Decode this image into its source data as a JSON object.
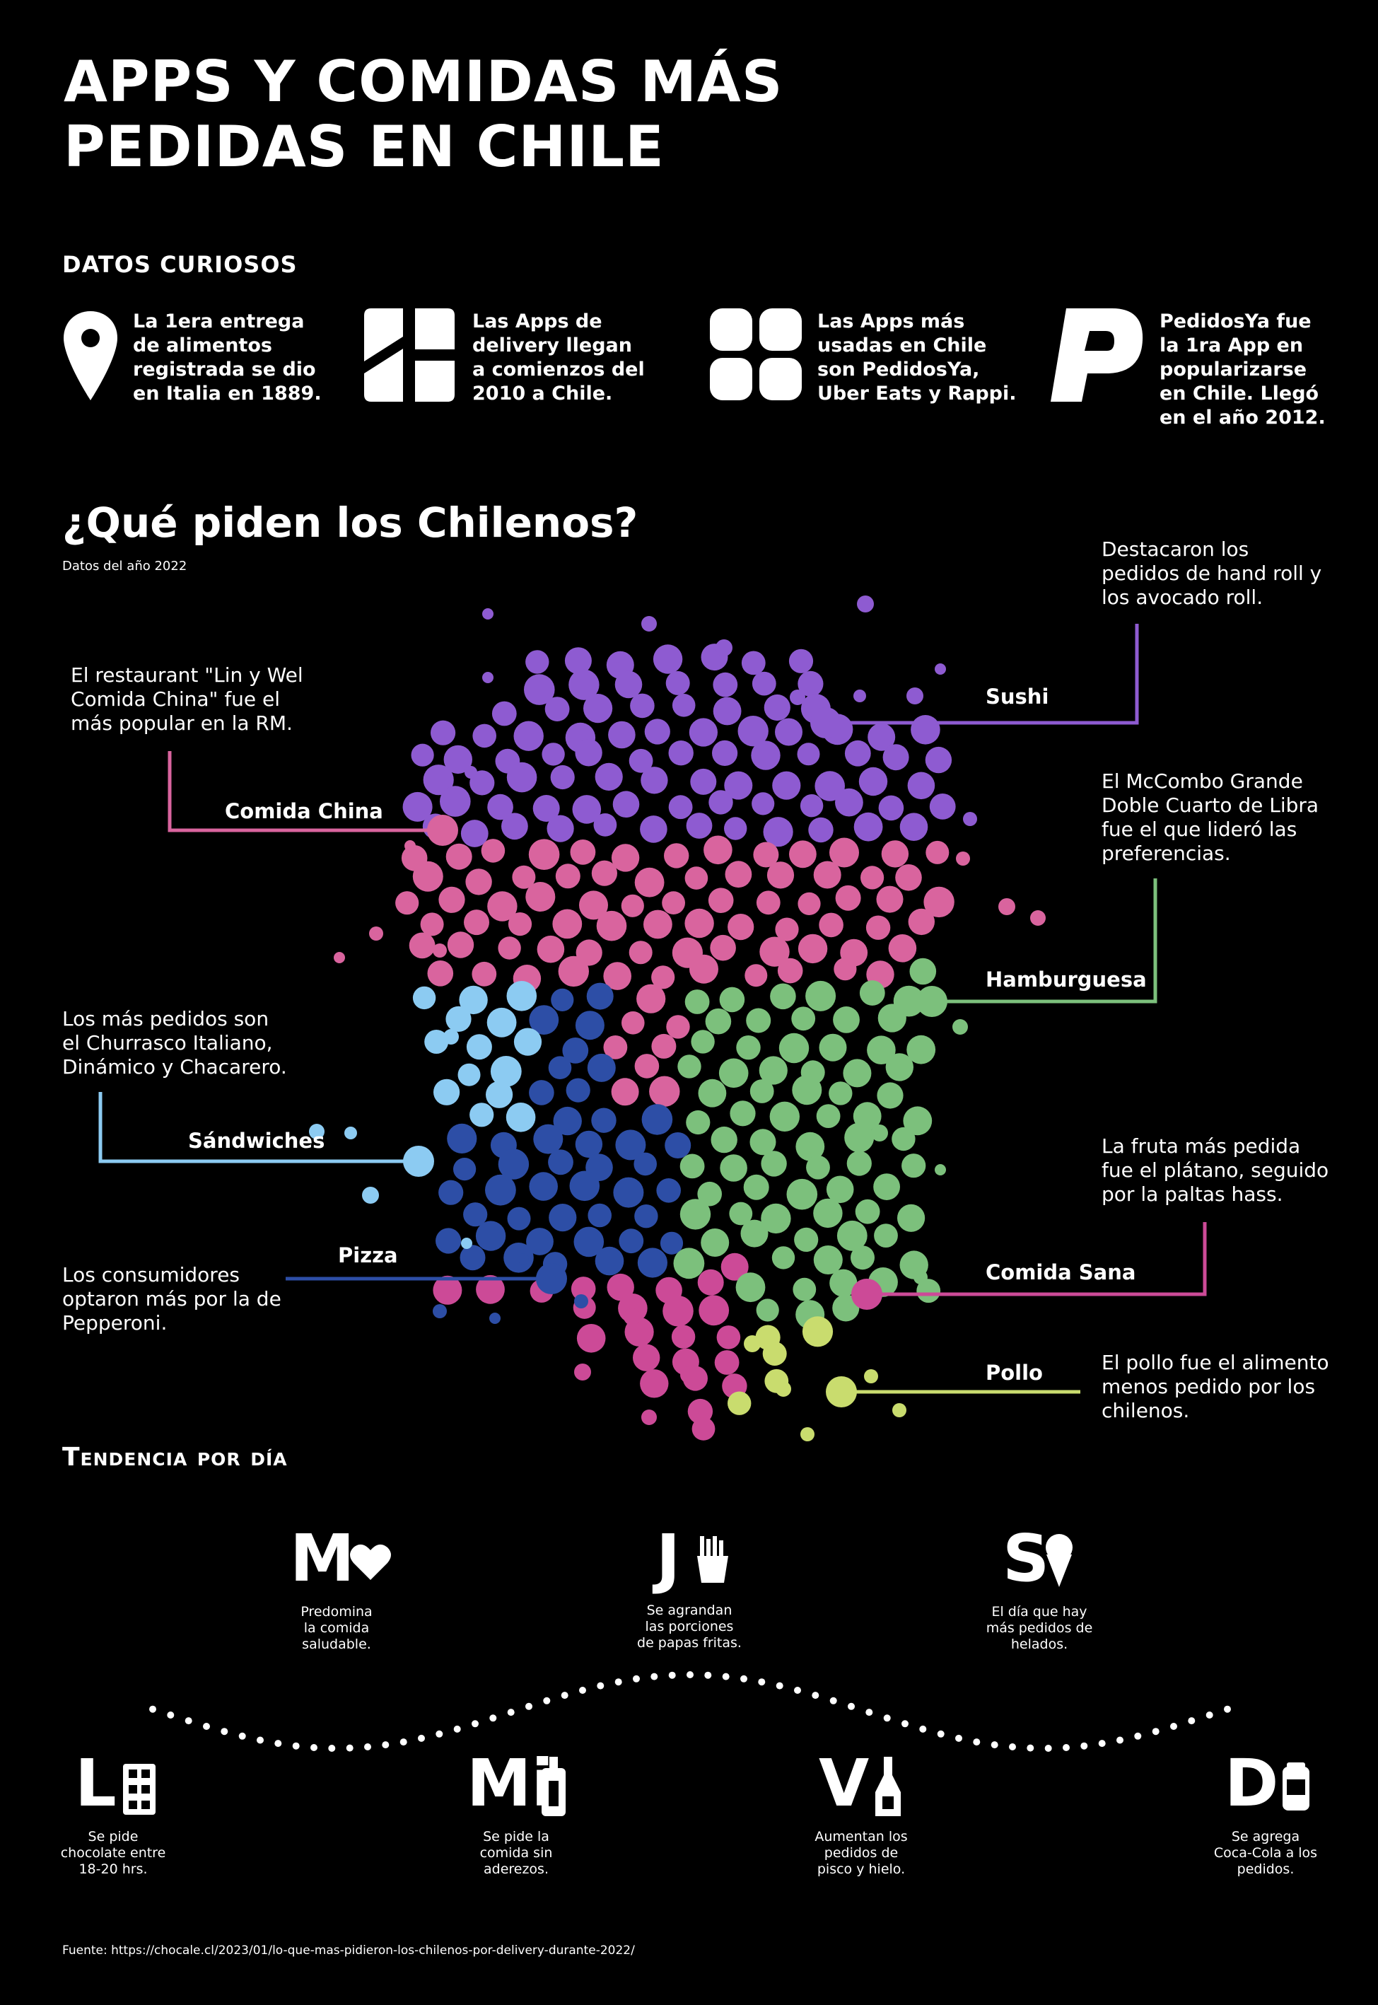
{
  "title_line1": "APPS Y COMIDAS MÁS",
  "title_line2": "PEDIDAS EN CHILE",
  "facts_heading": "DATOS CURIOSOS",
  "facts": [
    {
      "icon": "location-pin-icon",
      "text": [
        "La 1era entrega",
        "de alimentos",
        "registrada se dio",
        "en Italia en 1889."
      ]
    },
    {
      "icon": "delivery-app-icon",
      "text": [
        "Las Apps de",
        "delivery llegan",
        "a comienzos del",
        "2010 a Chile."
      ]
    },
    {
      "icon": "apps-grid-icon",
      "text": [
        "Las Apps más",
        "usadas en Chile",
        "son PedidosYa,",
        "Uber Eats y Rappi."
      ]
    },
    {
      "icon": "pedidosya-logo-icon",
      "text": [
        "PedidosYa fue",
        "la 1ra App en",
        "popularizarse",
        "en Chile. Llegó",
        "en el año 2012."
      ]
    }
  ],
  "section_title": "¿Qué piden los Chilenos?",
  "section_subtitle": "Datos del año 2022",
  "categories": [
    {
      "id": "sushi",
      "label": "Sushi",
      "color": "#8e5bd1",
      "note": [
        "Destacaron los",
        "pedidos de hand roll y",
        "los avocado roll."
      ]
    },
    {
      "id": "comida-china",
      "label": "Comida China",
      "color": "#d9649e",
      "note": [
        "El restaurant \"Lin y Wel",
        "Comida China\" fue el",
        "más popular en la RM."
      ]
    },
    {
      "id": "hamburguesa",
      "label": "Hamburguesa",
      "color": "#7cc07c",
      "note": [
        "El McCombo Grande",
        "Doble Cuarto de Libra",
        "fue el que lideró las",
        "preferencias."
      ]
    },
    {
      "id": "sandwiches",
      "label": "Sándwiches",
      "color": "#8ccbf2",
      "note": [
        "Los más pedidos son",
        "el Churrasco Italiano,",
        "Dinámico y Chacarero."
      ]
    },
    {
      "id": "pizza",
      "label": "Pizza",
      "color": "#2d4ea6",
      "note": [
        "Los consumidores",
        "optaron más por la de",
        "Pepperoni."
      ]
    },
    {
      "id": "comida-sana",
      "label": "Comida Sana",
      "color": "#cc4a97",
      "note": [
        "La fruta más pedida",
        "fue el plátano, seguido",
        "por la paltas hass."
      ]
    },
    {
      "id": "pollo",
      "label": "Pollo",
      "color": "#c9dc6e",
      "note": [
        "El pollo fue el alimento",
        "menos pedido por los",
        "chilenos."
      ]
    }
  ],
  "trend_heading": "Tendencia por día",
  "days": [
    {
      "letter": "L",
      "icon": "chocolate-bar-icon",
      "text": [
        "Se pide",
        "chocolate entre",
        "18-20 hrs."
      ]
    },
    {
      "letter": "M",
      "icon": "heart-icon",
      "text": [
        "Predomina",
        "la comida",
        "saludable."
      ]
    },
    {
      "letter": "Mi",
      "icon": "condiment-bottle-icon",
      "text": [
        "Se pide la",
        "comida sin",
        "aderezos."
      ]
    },
    {
      "letter": "J",
      "icon": "french-fries-icon",
      "text": [
        "Se agrandan",
        "las porciones",
        "de papas fritas."
      ]
    },
    {
      "letter": "V",
      "icon": "pisco-bottle-icon",
      "text": [
        "Aumentan los",
        "pedidos de",
        "pisco y hielo."
      ]
    },
    {
      "letter": "S",
      "icon": "ice-cream-icon",
      "text": [
        "El día que hay",
        "más pedidos de",
        "helados."
      ]
    },
    {
      "letter": "D",
      "icon": "soda-can-icon",
      "text": [
        "Se agrega",
        "Coca-Cola a los",
        "pedidos."
      ]
    }
  ],
  "source": "Fuente: https://chocale.cl/2023/01/lo-que-mas-pidieron-los-chilenos-por-delivery-durante-2022/"
}
